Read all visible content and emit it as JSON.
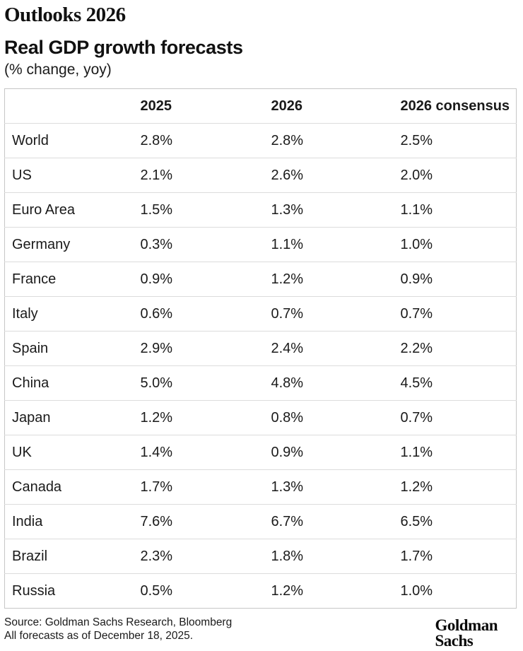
{
  "header": {
    "kicker": "Outlooks 2026",
    "title": "Real GDP growth forecasts",
    "subtitle": "(% change, yoy)"
  },
  "chart_data": {
    "type": "table",
    "title": "Real GDP growth forecasts",
    "subtitle": "(% change, yoy)",
    "columns": [
      "",
      "2025",
      "2026",
      "2026 consensus"
    ],
    "rows": [
      {
        "label": "World",
        "values": [
          "2.8%",
          "2.8%",
          "2.5%"
        ]
      },
      {
        "label": "US",
        "values": [
          "2.1%",
          "2.6%",
          "2.0%"
        ]
      },
      {
        "label": "Euro Area",
        "values": [
          "1.5%",
          "1.3%",
          "1.1%"
        ]
      },
      {
        "label": "Germany",
        "values": [
          "0.3%",
          "1.1%",
          "1.0%"
        ]
      },
      {
        "label": "France",
        "values": [
          "0.9%",
          "1.2%",
          "0.9%"
        ]
      },
      {
        "label": "Italy",
        "values": [
          "0.6%",
          "0.7%",
          "0.7%"
        ]
      },
      {
        "label": "Spain",
        "values": [
          "2.9%",
          "2.4%",
          "2.2%"
        ]
      },
      {
        "label": "China",
        "values": [
          "5.0%",
          "4.8%",
          "4.5%"
        ]
      },
      {
        "label": "Japan",
        "values": [
          "1.2%",
          "0.8%",
          "0.7%"
        ]
      },
      {
        "label": "UK",
        "values": [
          "1.4%",
          "0.9%",
          "1.1%"
        ]
      },
      {
        "label": "Canada",
        "values": [
          "1.7%",
          "1.3%",
          "1.2%"
        ]
      },
      {
        "label": "India",
        "values": [
          "7.6%",
          "6.7%",
          "6.5%"
        ]
      },
      {
        "label": "Brazil",
        "values": [
          "2.3%",
          "1.8%",
          "1.7%"
        ]
      },
      {
        "label": "Russia",
        "values": [
          "0.5%",
          "1.2%",
          "1.0%"
        ]
      }
    ]
  },
  "footer": {
    "source_line1": "Source: Goldman Sachs Research, Bloomberg",
    "source_line2": "All forecasts as of December 18, 2025.",
    "logo_line1": "Goldman",
    "logo_line2": "Sachs"
  },
  "colors": {
    "background": "#ffffff",
    "text": "#1a1a1a",
    "table_outer_border": "#c6c6c6",
    "table_row_divider": "#dcdcdc"
  }
}
